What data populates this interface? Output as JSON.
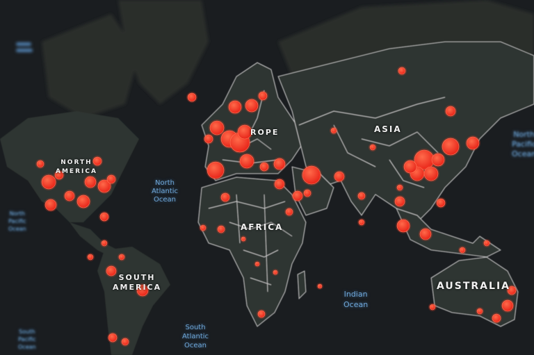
{
  "map": {
    "theme_colors": {
      "background": "#1a1d20",
      "land": "#2f3431",
      "border": "#e8e8e8",
      "dot": "#ff3a24",
      "ocean_label": "#6fa6d6"
    },
    "continents": [
      {
        "id": "north-america",
        "label": "NORTH AMERICA",
        "lines": [
          "NORTH",
          "AMERICA"
        ]
      },
      {
        "id": "south-america",
        "label": "SOUTH AMERICA",
        "lines": [
          "SOUTH",
          "AMERICA"
        ]
      },
      {
        "id": "europe",
        "label": "EUROPE",
        "lines": [
          "ROPE"
        ]
      },
      {
        "id": "asia",
        "label": "ASIA",
        "lines": [
          "ASIA"
        ]
      },
      {
        "id": "africa",
        "label": "AFRICA",
        "lines": [
          "AFRICA"
        ]
      },
      {
        "id": "australia",
        "label": "AUSTRALIA",
        "lines": [
          "AUSTRALIA"
        ]
      }
    ],
    "oceans": [
      {
        "id": "north-atlantic",
        "lines": [
          "North",
          "Atlantic",
          "Ocean"
        ]
      },
      {
        "id": "north-pacific-left",
        "lines": [
          "North",
          "Pacific",
          "Ocean"
        ]
      },
      {
        "id": "north-pacific-right",
        "lines": [
          "North",
          "Pacific",
          "Ocean"
        ]
      },
      {
        "id": "south-pacific",
        "lines": [
          "South",
          "Pacific",
          "Ocean"
        ]
      },
      {
        "id": "south-atlantic",
        "lines": [
          "South",
          "Atlantic",
          "Ocean"
        ]
      },
      {
        "id": "indian",
        "lines": [
          "Indian",
          "Ocean"
        ]
      }
    ]
  }
}
